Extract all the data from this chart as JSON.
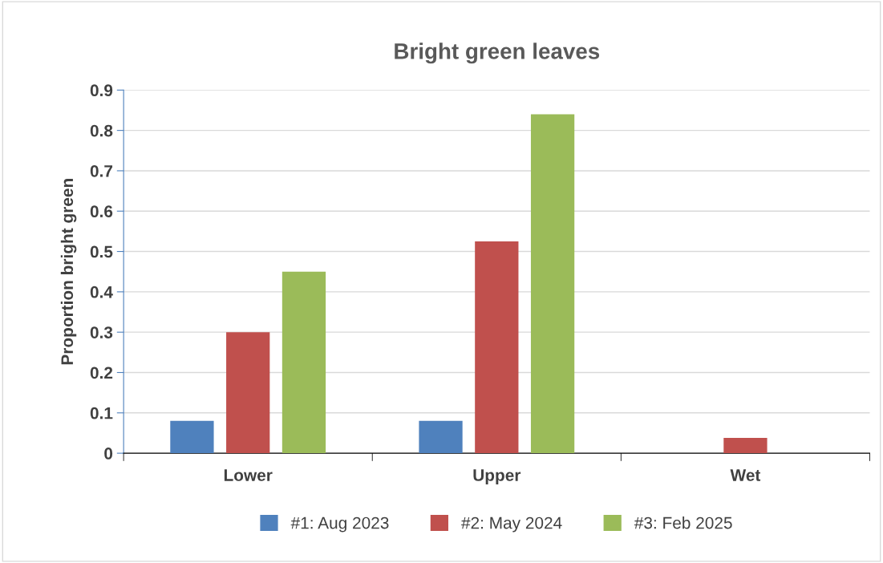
{
  "chart_data": {
    "type": "bar",
    "title": "Bright green leaves",
    "ylabel": "Proportion bright green",
    "categories": [
      "Lower",
      "Upper",
      "Wet"
    ],
    "series": [
      {
        "name": "#1: Aug 2023",
        "color": "#4f81bd",
        "values": [
          0.08,
          0.08,
          0
        ]
      },
      {
        "name": "#2: May 2024",
        "color": "#c0504d",
        "values": [
          0.3,
          0.525,
          0.038
        ]
      },
      {
        "name": "#3: Feb 2025",
        "color": "#9bbb59",
        "values": [
          0.45,
          0.84,
          0
        ]
      }
    ],
    "ylim": [
      0,
      0.9
    ],
    "yticks": [
      0,
      0.1,
      0.2,
      0.3,
      0.4,
      0.5,
      0.6,
      0.7,
      0.8,
      0.9
    ],
    "grid": "y",
    "legend": "bottom"
  }
}
